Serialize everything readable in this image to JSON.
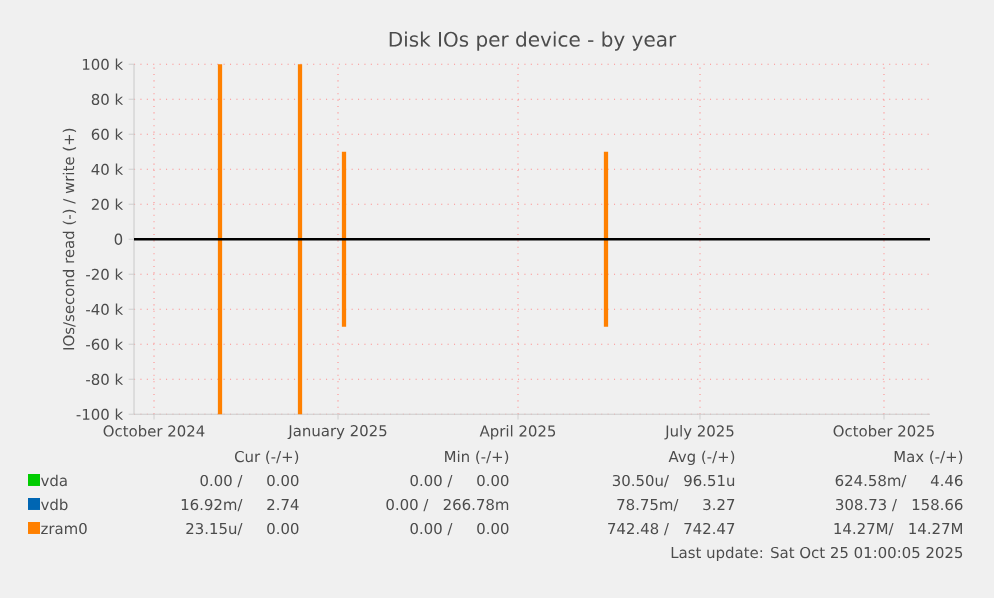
{
  "chart_data": {
    "type": "line",
    "title": "Disk IOs per device - by year",
    "ylabel": "IOs/second read (-) / write (+)",
    "xlim": [
      "2024-09-21",
      "2025-10-24"
    ],
    "xticks": [
      {
        "value": "2024-10-01",
        "label": "October 2024"
      },
      {
        "value": "2025-01-01",
        "label": "January 2025"
      },
      {
        "value": "2025-04-01",
        "label": "April 2025"
      },
      {
        "value": "2025-07-01",
        "label": "July 2025"
      },
      {
        "value": "2025-10-01",
        "label": "October 2025"
      }
    ],
    "ylim": [
      -100000,
      100000
    ],
    "yticks": [
      {
        "value": -100000,
        "label": "-100 k"
      },
      {
        "value": -80000,
        "label": "-80 k"
      },
      {
        "value": -60000,
        "label": "-60 k"
      },
      {
        "value": -40000,
        "label": "-40 k"
      },
      {
        "value": -20000,
        "label": "-20 k"
      },
      {
        "value": 0,
        "label": "0"
      },
      {
        "value": 20000,
        "label": "20 k"
      },
      {
        "value": 40000,
        "label": "40 k"
      },
      {
        "value": 60000,
        "label": "60 k"
      },
      {
        "value": 80000,
        "label": "80 k"
      },
      {
        "value": 100000,
        "label": "100 k"
      }
    ],
    "grid": true,
    "legend": "bottom",
    "ref_lines": [
      {
        "axis": "y",
        "value": 0,
        "color": "#000000"
      }
    ],
    "series": [
      {
        "name": "vda",
        "color": "#00cc00"
      },
      {
        "name": "vdb",
        "color": "#0066b3"
      },
      {
        "name": "zram0",
        "color": "#ff8000",
        "x": [
          "2024-11-03",
          "2024-11-03",
          "2024-11-20",
          "2024-12-13",
          "2024-12-13",
          "2024-12-20",
          "2025-01-04",
          "2025-01-04",
          "2025-03-01",
          "2025-05-15",
          "2025-05-15"
        ],
        "values": [
          100000,
          -100000,
          null,
          100000,
          -100000,
          null,
          50000,
          -50000,
          null,
          50000,
          -50000
        ]
      }
    ],
    "annotations": [
      "Cur (-/+)",
      "Min (-/+)",
      "Avg (-/+)",
      "Max (-/+)",
      "0.00 /     0.00",
      "0.00 /     0.00",
      "30.50u/   96.51u",
      "624.58m/     4.46",
      "16.92m/     2.74",
      "0.00 /   266.78m",
      "78.75m/     3.27",
      "308.73 /   158.66",
      "23.15u/     0.00",
      "0.00 /     0.00",
      "742.48 /   742.47",
      "14.27M/   14.27M",
      "Last update: Sat Oct 25 01:00:05 2025"
    ]
  }
}
